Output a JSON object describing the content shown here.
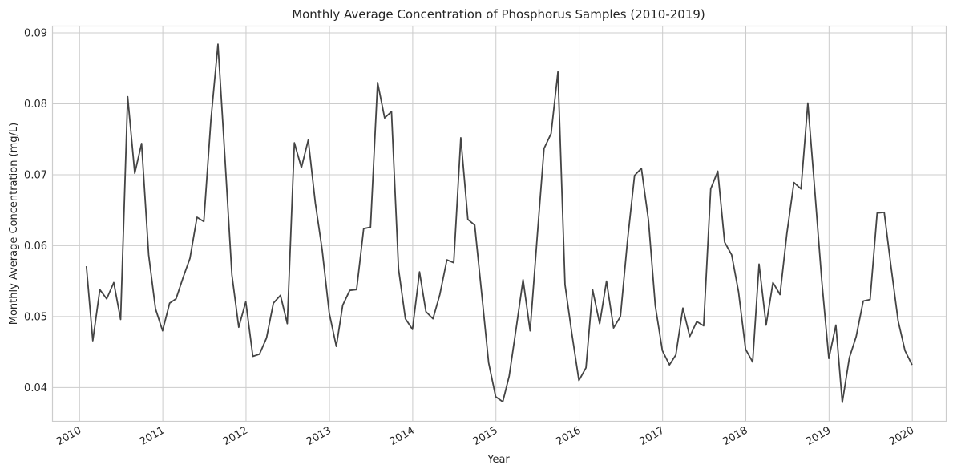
{
  "chart_data": {
    "type": "line",
    "title": "Monthly Average Concentration of Phosphorus Samples (2010-2019)",
    "xlabel": "Year",
    "ylabel": "Monthly Average Concentration (mg/L)",
    "x_ticks": [
      "2010",
      "2011",
      "2012",
      "2013",
      "2014",
      "2015",
      "2016",
      "2017",
      "2018",
      "2019",
      "2020"
    ],
    "y_ticks": [
      "0.04",
      "0.05",
      "0.06",
      "0.07",
      "0.08",
      "0.09"
    ],
    "xlim": [
      "2009-09-06",
      "2020-05-27"
    ],
    "ylim": [
      0.0353,
      0.0909
    ],
    "grid": true,
    "line_color": "#444444",
    "series": [
      {
        "x": [
          "2010-01-31",
          "2010-02-28",
          "2010-03-31",
          "2010-04-30",
          "2010-05-31",
          "2010-06-30",
          "2010-07-31",
          "2010-08-31",
          "2010-09-30",
          "2010-10-31",
          "2010-11-30",
          "2010-12-31",
          "2011-01-31",
          "2011-02-28",
          "2011-03-31",
          "2011-04-30",
          "2011-05-31",
          "2011-06-30",
          "2011-07-31",
          "2011-08-31",
          "2011-09-30",
          "2011-10-31",
          "2011-11-30",
          "2011-12-31",
          "2012-01-31",
          "2012-02-29",
          "2012-03-31",
          "2012-04-30",
          "2012-05-31",
          "2012-06-30",
          "2012-07-31",
          "2012-08-31",
          "2012-09-30",
          "2012-10-31",
          "2012-11-30",
          "2012-12-31",
          "2013-01-31",
          "2013-02-28",
          "2013-03-31",
          "2013-04-30",
          "2013-05-31",
          "2013-06-30",
          "2013-07-31",
          "2013-08-31",
          "2013-09-30",
          "2013-10-31",
          "2013-11-30",
          "2013-12-31",
          "2014-01-31",
          "2014-02-28",
          "2014-03-31",
          "2014-04-30",
          "2014-05-31",
          "2014-06-30",
          "2014-07-31",
          "2014-08-31",
          "2014-09-30",
          "2014-10-31",
          "2014-11-30",
          "2014-12-31",
          "2015-01-31",
          "2015-02-28",
          "2015-03-31",
          "2015-04-30",
          "2015-05-31",
          "2015-06-30",
          "2015-07-31",
          "2015-08-31",
          "2015-09-30",
          "2015-10-31",
          "2015-11-30",
          "2015-12-31",
          "2016-01-31",
          "2016-02-29",
          "2016-03-31",
          "2016-04-30",
          "2016-05-31",
          "2016-06-30",
          "2016-07-31",
          "2016-08-31",
          "2016-09-30",
          "2016-10-31",
          "2016-11-30",
          "2016-12-31",
          "2017-01-31",
          "2017-02-28",
          "2017-03-31",
          "2017-04-30",
          "2017-05-31",
          "2017-06-30",
          "2017-07-31",
          "2017-08-31",
          "2017-09-30",
          "2017-10-31",
          "2017-11-30",
          "2017-12-31",
          "2018-01-31",
          "2018-02-28",
          "2018-03-31",
          "2018-04-30",
          "2018-05-31",
          "2018-06-30",
          "2018-07-31",
          "2018-08-31",
          "2018-09-30",
          "2018-10-31",
          "2018-11-30",
          "2018-12-31",
          "2019-01-31",
          "2019-02-28",
          "2019-03-31",
          "2019-04-30",
          "2019-05-31",
          "2019-06-30",
          "2019-07-31",
          "2019-08-31",
          "2019-09-30",
          "2019-10-31",
          "2019-11-30",
          "2019-12-31"
        ],
        "y": [
          0.0571,
          0.0466,
          0.0538,
          0.0525,
          0.0548,
          0.0496,
          0.081,
          0.0702,
          0.0744,
          0.0587,
          0.0511,
          0.048,
          0.0519,
          0.0525,
          0.0555,
          0.0582,
          0.064,
          0.0634,
          0.0777,
          0.0884,
          0.0727,
          0.0559,
          0.0485,
          0.0521,
          0.0444,
          0.0447,
          0.047,
          0.0519,
          0.053,
          0.049,
          0.0745,
          0.071,
          0.0749,
          0.066,
          0.0594,
          0.0505,
          0.0458,
          0.0516,
          0.0537,
          0.0538,
          0.0624,
          0.0626,
          0.083,
          0.078,
          0.0789,
          0.0567,
          0.0497,
          0.0482,
          0.0563,
          0.0507,
          0.0497,
          0.0531,
          0.058,
          0.0576,
          0.0752,
          0.0637,
          0.0629,
          0.0531,
          0.0435,
          0.0387,
          0.038,
          0.0416,
          0.0484,
          0.0552,
          0.048,
          0.0608,
          0.0737,
          0.0758,
          0.0845,
          0.0545,
          0.0476,
          0.041,
          0.0428,
          0.0538,
          0.049,
          0.055,
          0.0484,
          0.05,
          0.0607,
          0.0699,
          0.0709,
          0.0636,
          0.0515,
          0.0452,
          0.0432,
          0.0446,
          0.0512,
          0.0472,
          0.0493,
          0.0487,
          0.068,
          0.0705,
          0.0605,
          0.0587,
          0.0535,
          0.0454,
          0.0436,
          0.0574,
          0.0488,
          0.0548,
          0.0531,
          0.0617,
          0.0689,
          0.068,
          0.0801,
          0.0676,
          0.0551,
          0.0441,
          0.0488,
          0.0379,
          0.0442,
          0.0472,
          0.0522,
          0.0524,
          0.0646,
          0.0647,
          0.057,
          0.0494,
          0.0452,
          0.0432
        ]
      }
    ]
  }
}
